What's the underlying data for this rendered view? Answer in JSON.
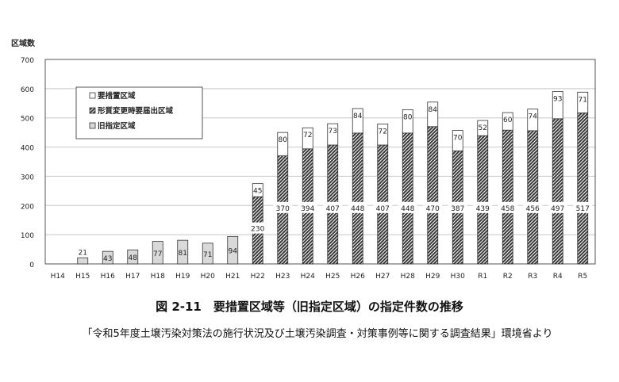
{
  "chart_data": {
    "type": "bar",
    "stacked": true,
    "title": "図 2-11　要措置区域等（旧指定区域）の指定件数の推移",
    "source": "「令和5年度土壌汚染対策法の施行状況及び土壌汚染調査・対策事例等に関する調査結果」環境省より",
    "ylabel": "区域数",
    "xlabel": "",
    "ylim": [
      0,
      700
    ],
    "yticks": [
      0,
      100,
      200,
      300,
      400,
      500,
      600,
      700
    ],
    "grid": true,
    "legend_placement": "top-left",
    "categories": [
      "H14",
      "H15",
      "H16",
      "H17",
      "H18",
      "H19",
      "H20",
      "H21",
      "H22",
      "H23",
      "H24",
      "H25",
      "H26",
      "H27",
      "H28",
      "H29",
      "H30",
      "R1",
      "R2",
      "R3",
      "R4",
      "R5"
    ],
    "series": [
      {
        "name": "旧指定区域",
        "pattern": "solid",
        "color": "#d9d9d9",
        "values": [
          0,
          21,
          43,
          48,
          77,
          81,
          71,
          94,
          0,
          0,
          0,
          0,
          0,
          0,
          0,
          0,
          0,
          0,
          0,
          0,
          0,
          0
        ]
      },
      {
        "name": "形質変更時要届出区域",
        "pattern": "hatched",
        "color": "#444444",
        "values": [
          0,
          0,
          0,
          0,
          0,
          0,
          0,
          0,
          230,
          370,
          394,
          407,
          448,
          407,
          448,
          470,
          387,
          439,
          458,
          456,
          497,
          517
        ]
      },
      {
        "name": "要措置区域",
        "pattern": "solid",
        "color": "#ffffff",
        "values": [
          0,
          0,
          0,
          0,
          0,
          0,
          0,
          0,
          45,
          80,
          72,
          73,
          84,
          72,
          80,
          84,
          70,
          52,
          60,
          74,
          93,
          71
        ]
      }
    ],
    "legend": [
      "要措置区域",
      "形質変更時要届出区域",
      "旧指定区域"
    ]
  }
}
